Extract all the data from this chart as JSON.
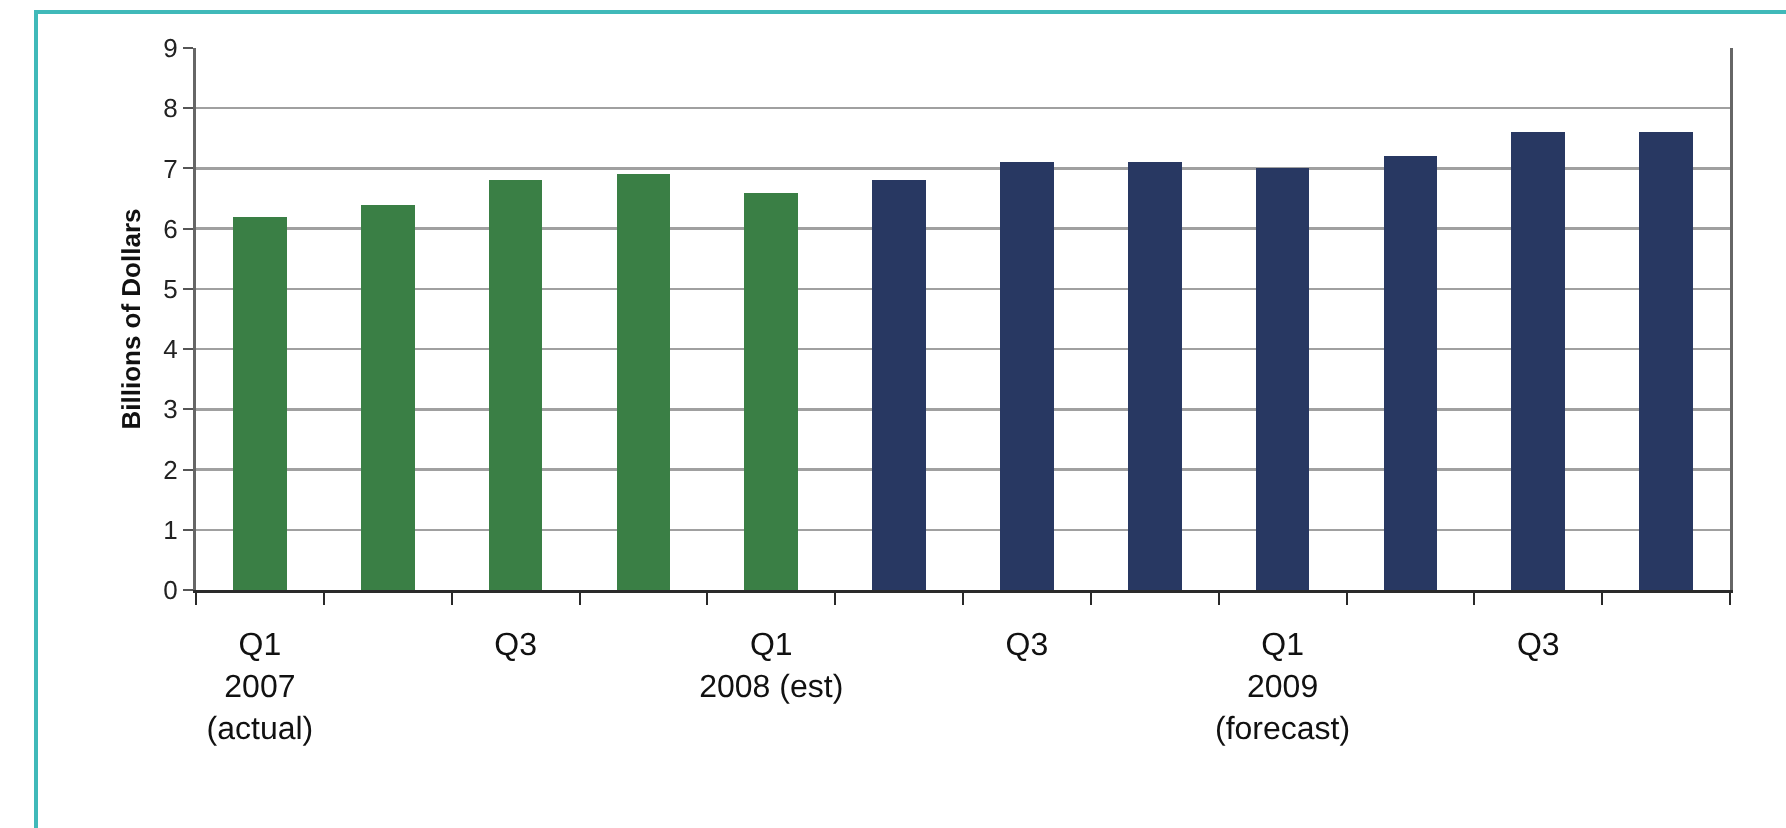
{
  "chart_data": {
    "type": "bar",
    "ylabel": "Billions of Dollars",
    "categories": [
      "Q1\n2007\n(actual)",
      null,
      "Q3",
      null,
      "Q1\n2008 (est)",
      null,
      "Q3",
      null,
      "Q1\n2009\n(forecast)",
      null,
      "Q3",
      null
    ],
    "values": [
      6.2,
      6.4,
      6.8,
      6.9,
      6.6,
      6.8,
      7.1,
      7.1,
      7.0,
      7.2,
      7.6,
      7.6
    ],
    "colors": [
      "#3a7f45",
      "#3a7f45",
      "#3a7f45",
      "#3a7f45",
      "#3a7f45",
      "#283862",
      "#283862",
      "#283862",
      "#283862",
      "#283862",
      "#283862",
      "#283862"
    ],
    "ylim": [
      0,
      9
    ],
    "yticks": [
      0,
      1,
      2,
      3,
      4,
      5,
      6,
      7,
      8,
      9
    ],
    "grid": "y"
  }
}
